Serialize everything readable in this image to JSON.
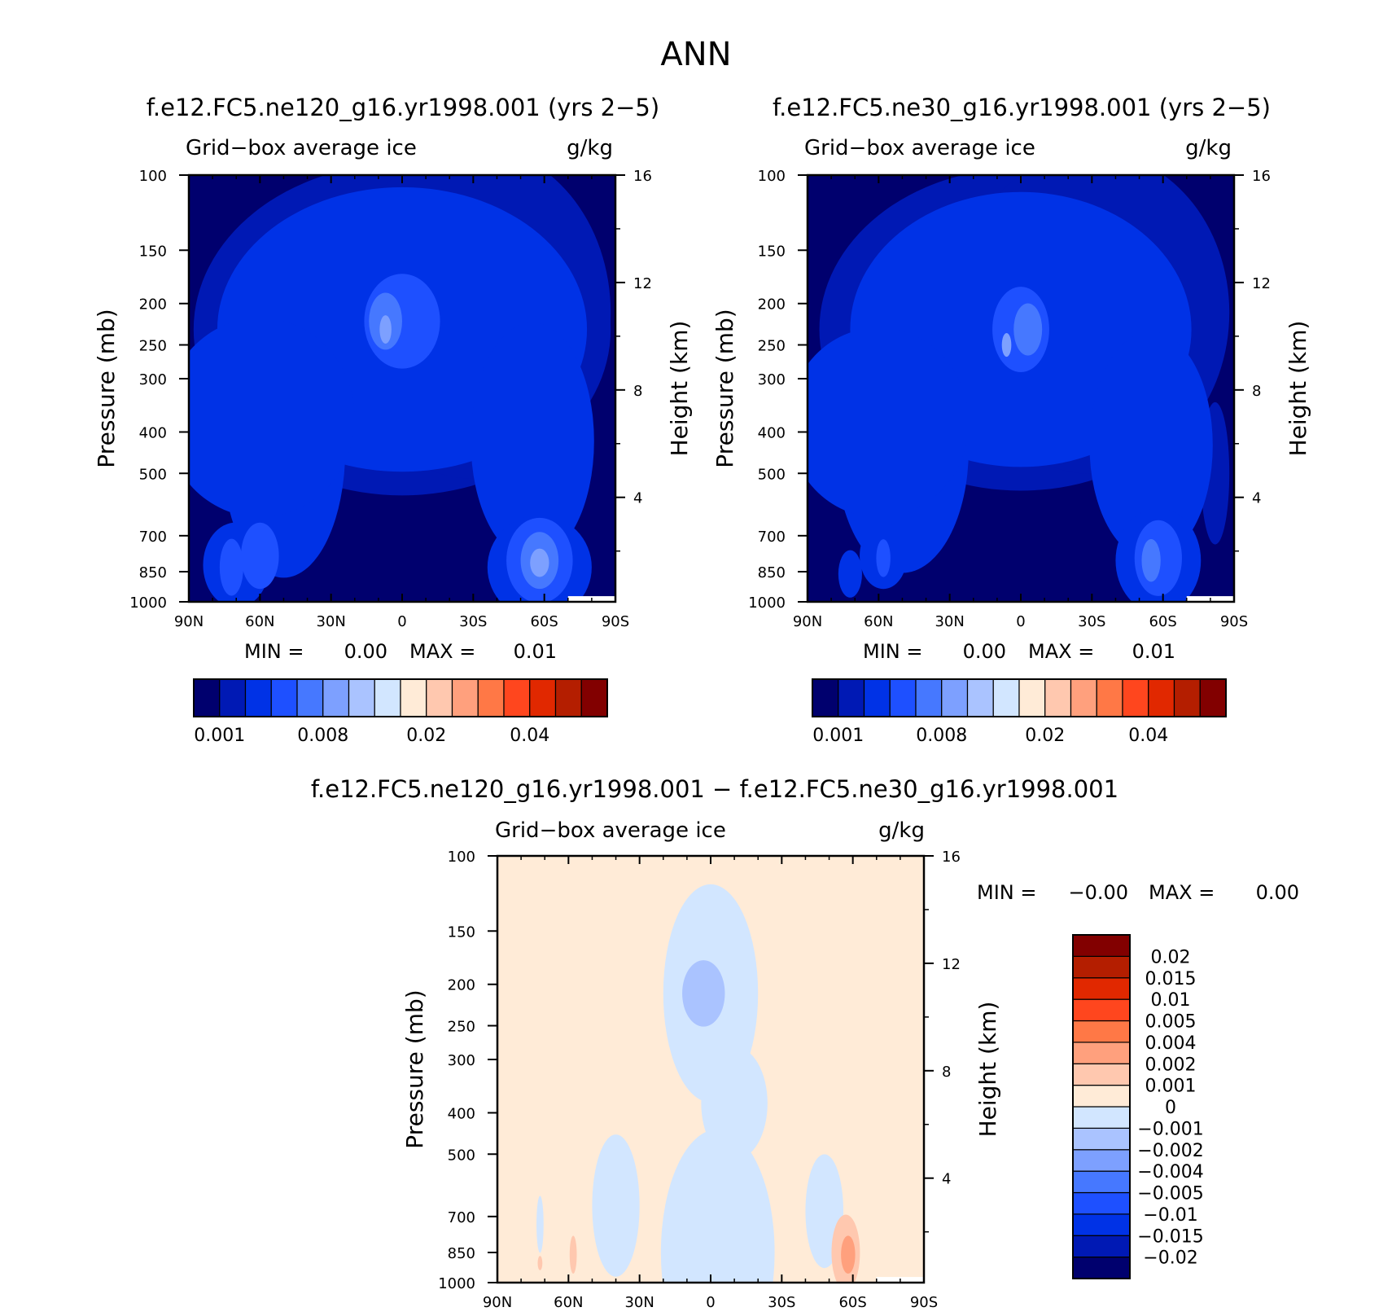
{
  "page_title": "ANN",
  "colors": {
    "base_palette": [
      "#00006e",
      "#0019b4",
      "#0032e6",
      "#1e50ff",
      "#4678ff",
      "#7da0ff",
      "#aac3ff",
      "#d2e6ff",
      "#ffebd7",
      "#ffc8af",
      "#ffa07d",
      "#ff7846",
      "#ff461e",
      "#e12800",
      "#b41e00",
      "#820000"
    ],
    "diff_palette": [
      "#00006e",
      "#0019b4",
      "#0032e6",
      "#1e50ff",
      "#4678ff",
      "#7da0ff",
      "#aac3ff",
      "#d2e6ff",
      "#ffebd7",
      "#ffc8af",
      "#ffa07d",
      "#ff7846",
      "#ff461e",
      "#e12800",
      "#b41e00",
      "#820000"
    ]
  },
  "chart_data": [
    {
      "type": "heatmap",
      "title": "f.e12.FC5.ne120_g16.yr1998.001 (yrs 2−5)",
      "left_label": "Grid−box average ice",
      "right_label": "g/kg",
      "ylabel": "Pressure (mb)",
      "y2label": "Height (km)",
      "x_ticks": [
        "90N",
        "60N",
        "30N",
        "0",
        "30S",
        "60S",
        "90S"
      ],
      "y_ticks": [
        "100",
        "150",
        "200",
        "250",
        "300",
        "400",
        "500",
        "700",
        "850",
        "1000"
      ],
      "y_tick_values": [
        100,
        150,
        200,
        250,
        300,
        400,
        500,
        700,
        850,
        1000
      ],
      "y2_ticks": [
        "16",
        "12",
        "8",
        "4"
      ],
      "y2_tick_values": [
        16,
        12,
        8,
        4
      ],
      "xlim": [
        90,
        -90
      ],
      "ylim": [
        1000,
        100
      ],
      "min_label": "MIN =",
      "min_value": "0.00",
      "max_label": "MAX =",
      "max_value": "0.01",
      "colorbar_labels": [
        "0.001",
        "0.008",
        "0.02",
        "0.04"
      ],
      "levels": [
        {
          "level": 1,
          "ellipses": [
            [
              0,
              230,
              88,
              350
            ],
            [
              -30,
              210,
              58,
              350
            ]
          ]
        },
        {
          "level": 2,
          "ellipses": [
            [
              50,
              440,
              26,
              270
            ],
            [
              0,
              230,
              78,
              300
            ],
            [
              -55,
              420,
              26,
              250
            ],
            [
              60,
              370,
              40,
              210
            ],
            [
              -58,
              830,
              22,
              110
            ],
            [
              70,
              820,
              14,
              90
            ]
          ]
        },
        {
          "level": 3,
          "ellipses": [
            [
              0,
              220,
              16,
              100
            ],
            [
              -58,
              800,
              14,
              90
            ],
            [
              60,
              780,
              8,
              70
            ],
            [
              72,
              830,
              5,
              60
            ]
          ]
        },
        {
          "level": 4,
          "ellipses": [
            [
              -58,
              800,
              8,
              60
            ],
            [
              7,
              220,
              7,
              60
            ]
          ]
        },
        {
          "level": 5,
          "ellipses": [
            [
              -58,
              810,
              4,
              30
            ],
            [
              7,
              230,
              2.5,
              30
            ]
          ]
        }
      ]
    },
    {
      "type": "heatmap",
      "title": "f.e12.FC5.ne30_g16.yr1998.001 (yrs 2−5)",
      "left_label": "Grid−box average ice",
      "right_label": "g/kg",
      "ylabel": "Pressure (mb)",
      "y2label": "Height (km)",
      "x_ticks": [
        "90N",
        "60N",
        "30N",
        "0",
        "30S",
        "60S",
        "90S"
      ],
      "y_ticks": [
        "100",
        "150",
        "200",
        "250",
        "300",
        "400",
        "500",
        "700",
        "850",
        "1000"
      ],
      "y_tick_values": [
        100,
        150,
        200,
        250,
        300,
        400,
        500,
        700,
        850,
        1000
      ],
      "y2_ticks": [
        "16",
        "12",
        "8",
        "4"
      ],
      "y2_tick_values": [
        16,
        12,
        8,
        4
      ],
      "xlim": [
        90,
        -90
      ],
      "ylim": [
        1000,
        100
      ],
      "min_label": "MIN =",
      "min_value": "0.00",
      "max_label": "MAX =",
      "max_value": "0.01",
      "colorbar_labels": [
        "0.001",
        "0.008",
        "0.02",
        "0.04"
      ],
      "levels": [
        {
          "level": 1,
          "ellipses": [
            [
              0,
              230,
              85,
              340
            ],
            [
              -30,
              210,
              58,
              340
            ],
            [
              -82,
              500,
              6,
              150
            ]
          ]
        },
        {
          "level": 2,
          "ellipses": [
            [
              50,
              440,
              28,
              260
            ],
            [
              0,
              230,
              72,
              290
            ],
            [
              -55,
              430,
              26,
              240
            ],
            [
              60,
              380,
              38,
              200
            ],
            [
              -58,
              800,
              18,
              110
            ],
            [
              58,
              780,
              10,
              70
            ],
            [
              72,
              860,
              5,
              50
            ]
          ]
        },
        {
          "level": 3,
          "ellipses": [
            [
              0,
              230,
              12,
              90
            ],
            [
              -58,
              790,
              10,
              80
            ],
            [
              58,
              790,
              3,
              40
            ]
          ]
        },
        {
          "level": 4,
          "ellipses": [
            [
              -3,
              230,
              6,
              55
            ],
            [
              -55,
              800,
              4,
              45
            ]
          ]
        },
        {
          "level": 5,
          "ellipses": [
            [
              6,
              250,
              2,
              25
            ]
          ]
        }
      ]
    },
    {
      "type": "heatmap",
      "title": "f.e12.FC5.ne120_g16.yr1998.001 − f.e12.FC5.ne30_g16.yr1998.001",
      "left_label": "Grid−box average ice",
      "right_label": "g/kg",
      "ylabel": "Pressure (mb)",
      "y2label": "Height (km)",
      "x_ticks": [
        "90N",
        "60N",
        "30N",
        "0",
        "30S",
        "60S",
        "90S"
      ],
      "y_ticks": [
        "100",
        "150",
        "200",
        "250",
        "300",
        "400",
        "500",
        "700",
        "850",
        "1000"
      ],
      "y_tick_values": [
        100,
        150,
        200,
        250,
        300,
        400,
        500,
        700,
        850,
        1000
      ],
      "y2_ticks": [
        "16",
        "12",
        "8",
        "4"
      ],
      "y2_tick_values": [
        16,
        12,
        8,
        4
      ],
      "xlim": [
        90,
        -90
      ],
      "ylim": [
        1000,
        100
      ],
      "min_label": "MIN =",
      "min_value": "−0.00",
      "max_label": "MAX =",
      "max_value": "0.00",
      "colorbar_labels": [
        "0.02",
        "0.015",
        "0.01",
        "0.005",
        "0.004",
        "0.002",
        "0.001",
        "0",
        "−0.001",
        "−0.002",
        "−0.004",
        "−0.005",
        "−0.01",
        "−0.015",
        "−0.02"
      ],
      "regions": [
        {
          "fill_index": 7,
          "ellipses": [
            [
              0,
              210,
              20,
              230
            ],
            [
              -10,
              380,
              14,
              120
            ],
            [
              40,
              660,
              10,
              150
            ],
            [
              -48,
              680,
              8,
              120
            ],
            [
              -3,
              850,
              24,
              260
            ],
            [
              72,
              730,
              1.5,
              60
            ]
          ]
        },
        {
          "fill_index": 6,
          "ellipses": [
            [
              3,
              210,
              9,
              70
            ]
          ]
        },
        {
          "fill_index": 9,
          "ellipses": [
            [
              -57,
              850,
              6,
              80
            ],
            [
              58,
              860,
              1.5,
              40
            ],
            [
              72,
              900,
              1,
              15
            ]
          ]
        },
        {
          "fill_index": 10,
          "ellipses": [
            [
              -58,
              860,
              3,
              40
            ]
          ]
        }
      ]
    }
  ]
}
